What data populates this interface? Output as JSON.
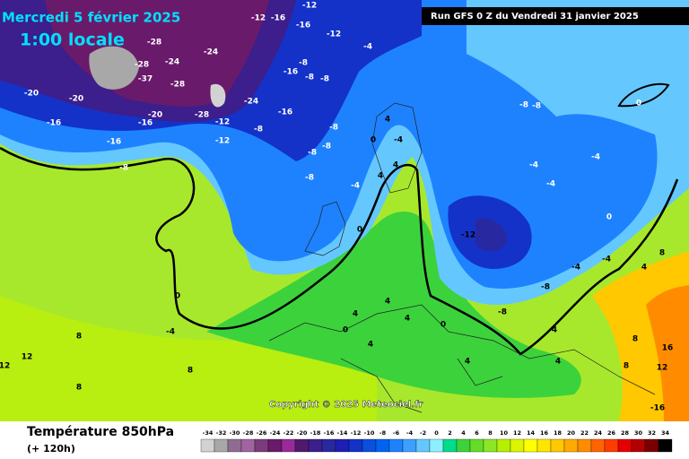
{
  "header": {
    "date": "Mercredi 5 février 2025",
    "time": "1:00 locale",
    "run": "Run GFS 0 Z du Vendredi 31 janvier 2025"
  },
  "copyright": "Copyright © 2025 Meteociel.fr",
  "footer": {
    "title": "Température 850hPa",
    "lead": "(+ 120h)"
  },
  "map_labels": [
    -28,
    -28,
    -24,
    -24,
    -37,
    -28,
    -20,
    -20,
    -16,
    -16,
    -16,
    -20,
    -28,
    -12,
    -12,
    -8,
    -24,
    -16,
    -8,
    -16,
    -8,
    -8,
    -12,
    -12,
    -16,
    -16,
    -12,
    -4,
    -8,
    -8,
    -8,
    -8,
    -8,
    -4,
    0,
    -4,
    4,
    4,
    4,
    0,
    -12,
    -8,
    -8,
    -4,
    -4,
    -4,
    0,
    0,
    -4,
    -4,
    -8,
    0,
    -4,
    8,
    12,
    12,
    8,
    8,
    4,
    4,
    0,
    0,
    4,
    4,
    4,
    4,
    4,
    8,
    16,
    12,
    8,
    8,
    4,
    -16,
    -8
  ],
  "legend": {
    "items": [
      {
        "value": -34,
        "color": "#d2d2d2"
      },
      {
        "value": -32,
        "color": "#a8a8a8"
      },
      {
        "value": -30,
        "color": "#906c90"
      },
      {
        "value": -28,
        "color": "#a064a0"
      },
      {
        "value": -26,
        "color": "#7a3c7a"
      },
      {
        "value": -24,
        "color": "#6a1a6a"
      },
      {
        "value": -22,
        "color": "#9a2a9a"
      },
      {
        "value": -20,
        "color": "#50196e"
      },
      {
        "value": -18,
        "color": "#3c1e8c"
      },
      {
        "value": -16,
        "color": "#2828a0"
      },
      {
        "value": -14,
        "color": "#1e1eb4"
      },
      {
        "value": -12,
        "color": "#1432c8"
      },
      {
        "value": -10,
        "color": "#0a50dc"
      },
      {
        "value": -8,
        "color": "#0064f0"
      },
      {
        "value": -6,
        "color": "#1e82ff"
      },
      {
        "value": -4,
        "color": "#3ca0ff"
      },
      {
        "value": -2,
        "color": "#64c8ff"
      },
      {
        "value": 0,
        "color": "#8cf0ff"
      },
      {
        "value": 2,
        "color": "#00dc8c"
      },
      {
        "value": 4,
        "color": "#3cd23c"
      },
      {
        "value": 6,
        "color": "#64dc28"
      },
      {
        "value": 8,
        "color": "#8ce628"
      },
      {
        "value": 10,
        "color": "#b4f000"
      },
      {
        "value": 12,
        "color": "#dcf500"
      },
      {
        "value": 14,
        "color": "#ffff00"
      },
      {
        "value": 16,
        "color": "#ffe600"
      },
      {
        "value": 18,
        "color": "#ffc800"
      },
      {
        "value": 20,
        "color": "#ffaa00"
      },
      {
        "value": 22,
        "color": "#ff8c00"
      },
      {
        "value": 24,
        "color": "#ff6400"
      },
      {
        "value": 26,
        "color": "#ff3c00"
      },
      {
        "value": 28,
        "color": "#e60000"
      },
      {
        "value": 30,
        "color": "#b40000"
      },
      {
        "value": 32,
        "color": "#780000"
      },
      {
        "value": 34,
        "color": "#000000"
      }
    ]
  }
}
